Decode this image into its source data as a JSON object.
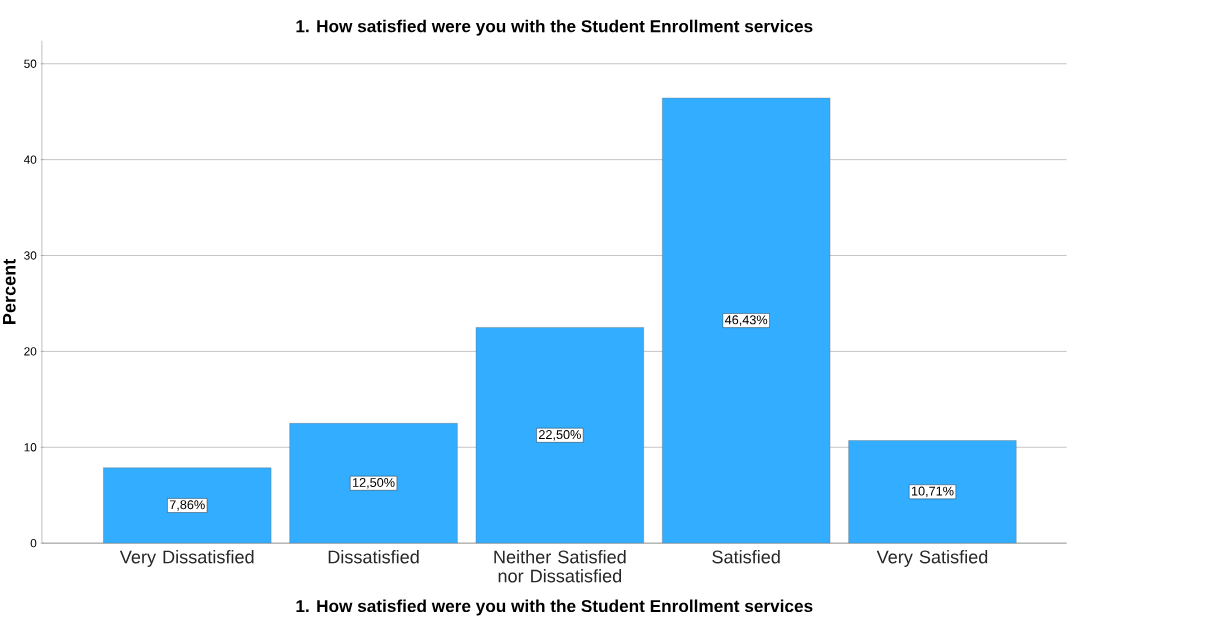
{
  "chart_data": {
    "type": "bar",
    "title": "1. How satisfied were you with the Student Enrollment services",
    "xlabel": "1. How satisfied were you with the Student Enrollment services",
    "ylabel": "Percent",
    "categories": [
      "Very Dissatisfied",
      "Dissatisfied",
      "Neither Satisfied nor Dissatisfied",
      "Satisfied",
      "Very Satisfied"
    ],
    "values": [
      7.86,
      12.5,
      22.5,
      46.43,
      10.71
    ],
    "value_labels": [
      "7,86%",
      "12,50%",
      "22,50%",
      "46,43%",
      "10,71%"
    ],
    "color": "#33adff",
    "ylim": [
      0,
      52.4
    ],
    "yticks": [
      0,
      10,
      20,
      30,
      40,
      50
    ],
    "grid": "y"
  }
}
